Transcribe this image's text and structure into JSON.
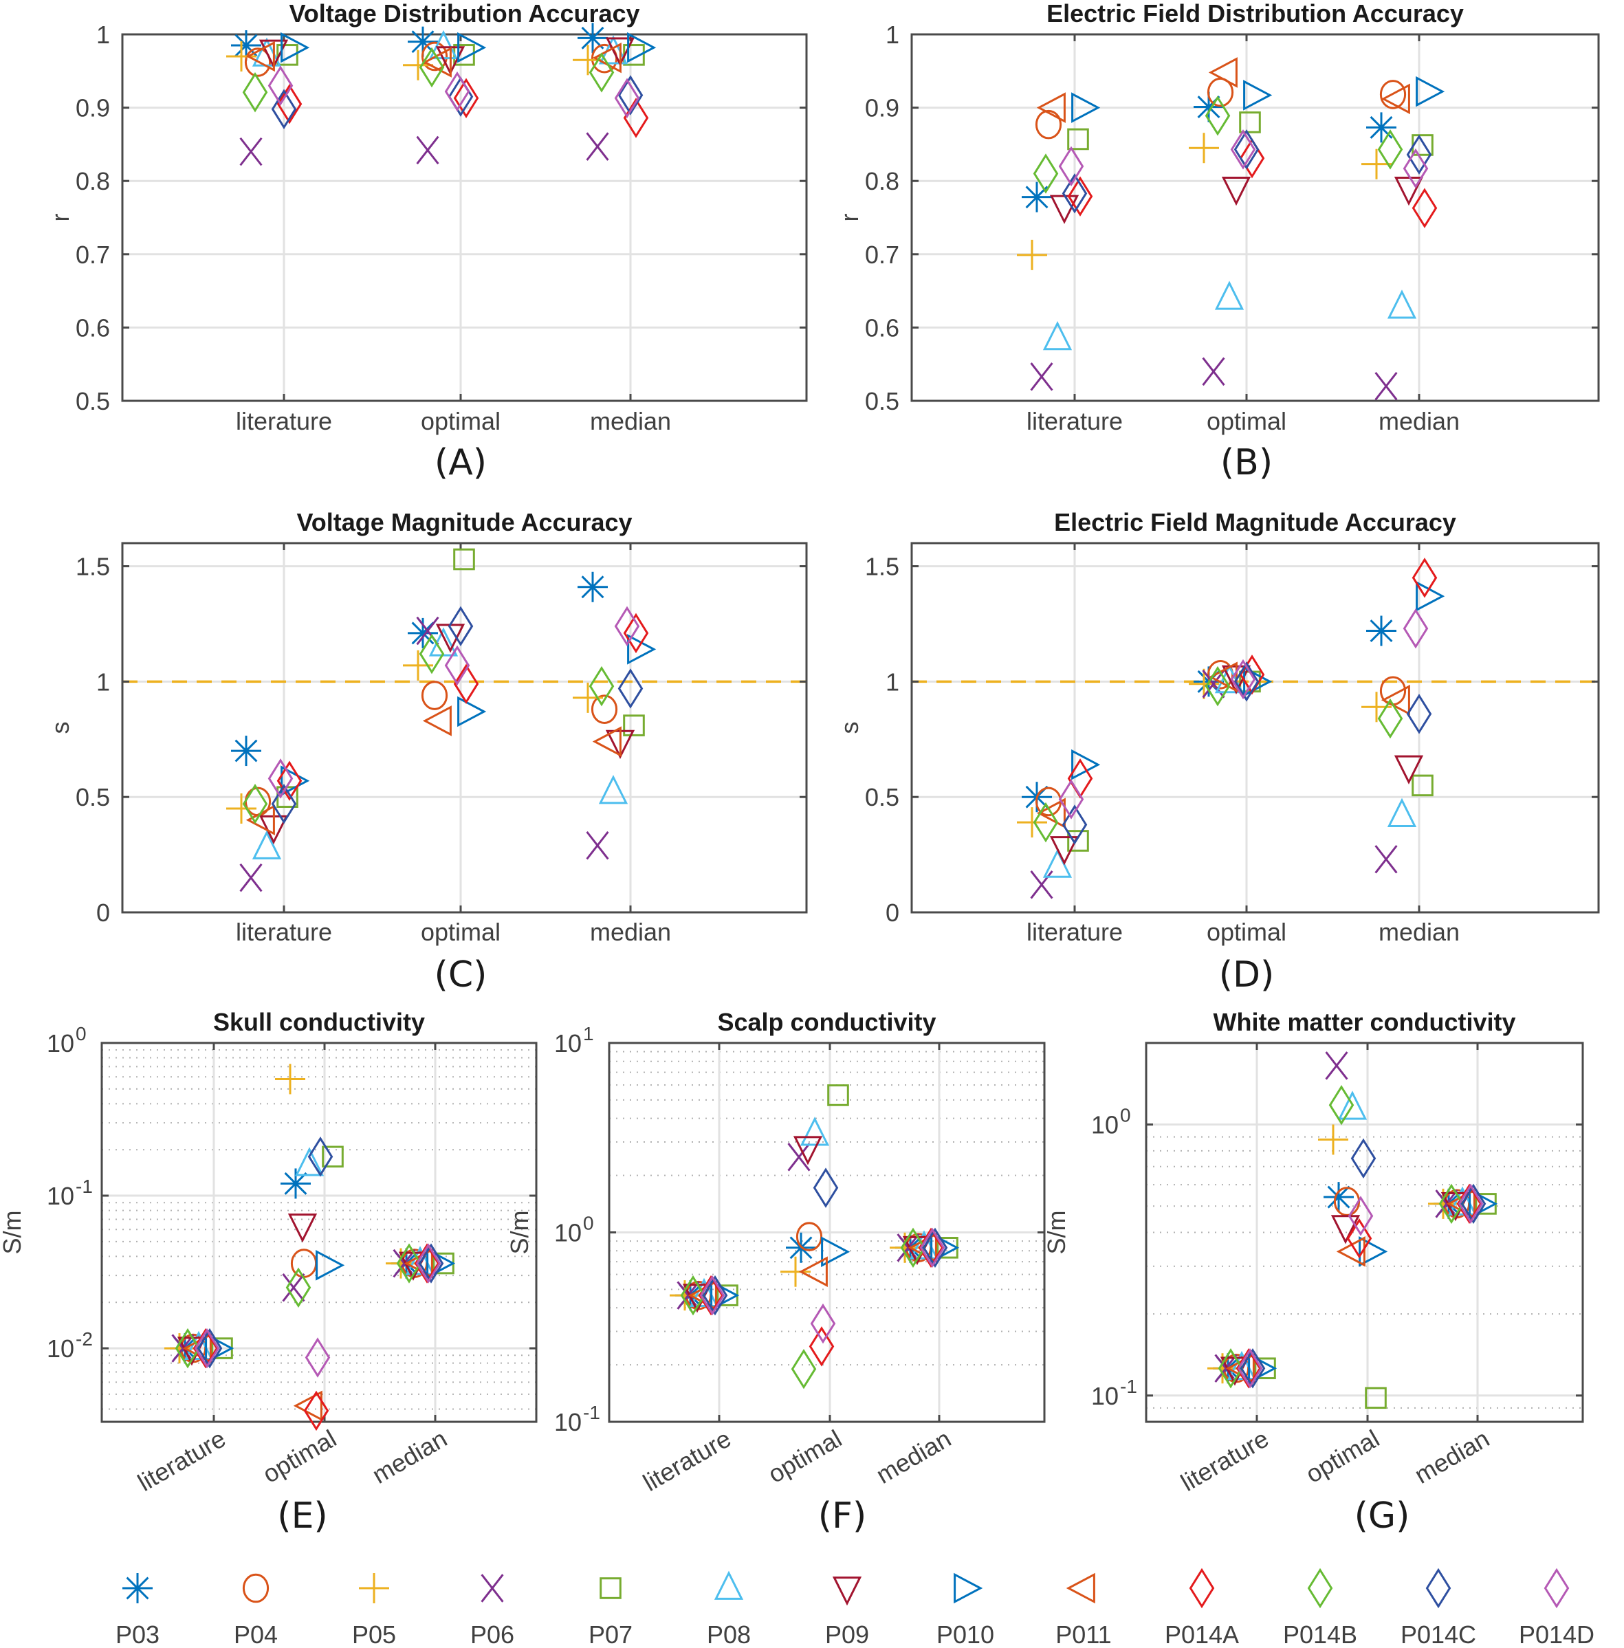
{
  "figure": {
    "legend": [
      "P03",
      "P04",
      "P05",
      "P06",
      "P07",
      "P08",
      "P09",
      "P010",
      "P011",
      "P014A",
      "P014B",
      "P014C",
      "P014D"
    ]
  },
  "participants": [
    {
      "name": "P03",
      "marker": "asterisk",
      "color": "#0072bd"
    },
    {
      "name": "P04",
      "marker": "circle",
      "color": "#d95319"
    },
    {
      "name": "P05",
      "marker": "plus",
      "color": "#edb120"
    },
    {
      "name": "P06",
      "marker": "x",
      "color": "#7e2f8e"
    },
    {
      "name": "P07",
      "marker": "square",
      "color": "#77ac30"
    },
    {
      "name": "P08",
      "marker": "triangle-up",
      "color": "#4dbeee"
    },
    {
      "name": "P09",
      "marker": "triangle-down",
      "color": "#a2142f"
    },
    {
      "name": "P010",
      "marker": "triangle-right",
      "color": "#0072bd"
    },
    {
      "name": "P011",
      "marker": "triangle-left",
      "color": "#d95319"
    },
    {
      "name": "P014A",
      "marker": "diamond",
      "color": "#e41a1c"
    },
    {
      "name": "P014B",
      "marker": "diamond",
      "color": "#66bb33"
    },
    {
      "name": "P014C",
      "marker": "diamond",
      "color": "#2e4fa0"
    },
    {
      "name": "P014D",
      "marker": "diamond",
      "color": "#b559b5"
    }
  ],
  "chart_data": [
    {
      "id": "A",
      "panel_label": "(A)",
      "type": "scatter",
      "title": "Voltage Distribution Accuracy",
      "xlabel": "",
      "ylabel": "r",
      "categories": [
        "literature",
        "optimal",
        "median"
      ],
      "ylim": [
        0.5,
        1
      ],
      "yscale": "linear",
      "yticks": [
        0.5,
        0.6,
        0.7,
        0.8,
        0.9,
        1
      ],
      "ytick_labels": [
        "0.5",
        "0.6",
        "0.7",
        "0.8",
        "0.9",
        "1"
      ],
      "grid": true,
      "series": [
        {
          "name": "P03",
          "values": [
            0.985,
            0.99,
            0.995
          ]
        },
        {
          "name": "P04",
          "values": [
            0.962,
            0.97,
            0.967
          ]
        },
        {
          "name": "P05",
          "values": [
            0.97,
            0.958,
            0.965
          ]
        },
        {
          "name": "P06",
          "values": [
            0.84,
            0.842,
            0.847
          ]
        },
        {
          "name": "P07",
          "values": [
            0.972,
            0.972,
            0.972
          ]
        },
        {
          "name": "P08",
          "values": [
            0.972,
            0.982,
            0.975
          ]
        },
        {
          "name": "P09",
          "values": [
            0.977,
            0.968,
            0.98
          ]
        },
        {
          "name": "P010",
          "values": [
            0.982,
            0.982,
            0.982
          ]
        },
        {
          "name": "P011",
          "values": [
            0.97,
            0.962,
            0.968
          ]
        },
        {
          "name": "P014A",
          "values": [
            0.905,
            0.913,
            0.886
          ]
        },
        {
          "name": "P014B",
          "values": [
            0.921,
            0.955,
            0.948
          ]
        },
        {
          "name": "P014C",
          "values": [
            0.898,
            0.915,
            0.917
          ]
        },
        {
          "name": "P014D",
          "values": [
            0.93,
            0.922,
            0.913
          ]
        }
      ]
    },
    {
      "id": "B",
      "panel_label": "(B)",
      "type": "scatter",
      "title": "Electric Field Distribution Accuracy",
      "xlabel": "",
      "ylabel": "r",
      "categories": [
        "literature",
        "optimal",
        "median"
      ],
      "ylim": [
        0.5,
        1
      ],
      "yscale": "linear",
      "yticks": [
        0.5,
        0.6,
        0.7,
        0.8,
        0.9,
        1
      ],
      "ytick_labels": [
        "0.5",
        "0.6",
        "0.7",
        "0.8",
        "0.9",
        "1"
      ],
      "grid": true,
      "series": [
        {
          "name": "P03",
          "values": [
            0.778,
            0.901,
            0.873
          ]
        },
        {
          "name": "P04",
          "values": [
            0.877,
            0.921,
            0.918
          ]
        },
        {
          "name": "P05",
          "values": [
            0.699,
            0.845,
            0.823
          ]
        },
        {
          "name": "P06",
          "values": [
            0.533,
            0.54,
            0.52
          ]
        },
        {
          "name": "P07",
          "values": [
            0.857,
            0.88,
            0.849
          ]
        },
        {
          "name": "P08",
          "values": [
            0.585,
            0.64,
            0.628
          ]
        },
        {
          "name": "P09",
          "values": [
            0.765,
            0.79,
            0.79
          ]
        },
        {
          "name": "P010",
          "values": [
            0.9,
            0.917,
            0.922
          ]
        },
        {
          "name": "P011",
          "values": [
            0.9,
            0.948,
            0.912
          ]
        },
        {
          "name": "P014A",
          "values": [
            0.779,
            0.831,
            0.763
          ]
        },
        {
          "name": "P014B",
          "values": [
            0.81,
            0.889,
            0.843
          ]
        },
        {
          "name": "P014C",
          "values": [
            0.783,
            0.843,
            0.836
          ]
        },
        {
          "name": "P014D",
          "values": [
            0.82,
            0.843,
            0.817
          ]
        }
      ]
    },
    {
      "id": "C",
      "panel_label": "(C)",
      "type": "scatter",
      "title": "Voltage Magnitude Accuracy",
      "xlabel": "",
      "ylabel": "s",
      "categories": [
        "literature",
        "optimal",
        "median"
      ],
      "ylim": [
        0,
        1.6
      ],
      "yscale": "linear",
      "yticks": [
        0,
        0.5,
        1,
        1.5
      ],
      "ytick_labels": [
        "0",
        "0.5",
        "1",
        "1.5"
      ],
      "grid": true,
      "reference_line": 1,
      "series": [
        {
          "name": "P03",
          "values": [
            0.7,
            1.21,
            1.41
          ]
        },
        {
          "name": "P04",
          "values": [
            0.48,
            0.94,
            0.88
          ]
        },
        {
          "name": "P05",
          "values": [
            0.45,
            1.07,
            0.93
          ]
        },
        {
          "name": "P06",
          "values": [
            0.15,
            1.22,
            0.29
          ]
        },
        {
          "name": "P07",
          "values": [
            0.5,
            1.53,
            0.81
          ]
        },
        {
          "name": "P08",
          "values": [
            0.28,
            1.16,
            0.52
          ]
        },
        {
          "name": "P09",
          "values": [
            0.37,
            1.2,
            0.74
          ]
        },
        {
          "name": "P010",
          "values": [
            0.57,
            0.87,
            1.14
          ]
        },
        {
          "name": "P011",
          "values": [
            0.4,
            0.83,
            0.74
          ]
        },
        {
          "name": "P014A",
          "values": [
            0.57,
            0.99,
            1.21
          ]
        },
        {
          "name": "P014B",
          "values": [
            0.47,
            1.12,
            0.98
          ]
        },
        {
          "name": "P014C",
          "values": [
            0.47,
            1.24,
            0.97
          ]
        },
        {
          "name": "P014D",
          "values": [
            0.58,
            1.07,
            1.24
          ]
        }
      ]
    },
    {
      "id": "D",
      "panel_label": "(D)",
      "type": "scatter",
      "title": "Electric Field Magnitude Accuracy",
      "xlabel": "",
      "ylabel": "s",
      "categories": [
        "literature",
        "optimal",
        "median"
      ],
      "ylim": [
        0,
        1.6
      ],
      "yscale": "linear",
      "yticks": [
        0,
        0.5,
        1,
        1.5
      ],
      "ytick_labels": [
        "0",
        "0.5",
        "1",
        "1.5"
      ],
      "grid": true,
      "reference_line": 1,
      "series": [
        {
          "name": "P03",
          "values": [
            0.5,
            1.0,
            1.22
          ]
        },
        {
          "name": "P04",
          "values": [
            0.48,
            1.03,
            0.96
          ]
        },
        {
          "name": "P05",
          "values": [
            0.39,
            0.99,
            0.89
          ]
        },
        {
          "name": "P06",
          "values": [
            0.12,
            0.99,
            0.23
          ]
        },
        {
          "name": "P07",
          "values": [
            0.31,
            1.0,
            0.55
          ]
        },
        {
          "name": "P08",
          "values": [
            0.2,
            1.0,
            0.42
          ]
        },
        {
          "name": "P09",
          "values": [
            0.28,
            1.02,
            0.63
          ]
        },
        {
          "name": "P010",
          "values": [
            0.64,
            1.0,
            1.37
          ]
        },
        {
          "name": "P011",
          "values": [
            0.43,
            1.02,
            0.92
          ]
        },
        {
          "name": "P014A",
          "values": [
            0.58,
            1.03,
            1.45
          ]
        },
        {
          "name": "P014B",
          "values": [
            0.39,
            0.98,
            0.84
          ]
        },
        {
          "name": "P014C",
          "values": [
            0.38,
            1.0,
            0.86
          ]
        },
        {
          "name": "P014D",
          "values": [
            0.49,
            1.01,
            1.23
          ]
        }
      ]
    },
    {
      "id": "E",
      "panel_label": "(E)",
      "type": "scatter",
      "title": "Skull conductivity",
      "xlabel": "",
      "ylabel": "S/m",
      "categories": [
        "literature",
        "optimal",
        "median"
      ],
      "ylim": [
        0.0033,
        1
      ],
      "yscale": "log",
      "yticks": [
        0.01,
        0.1,
        1
      ],
      "ytick_labels": [
        "10",
        "10",
        "10"
      ],
      "ytick_exponents": [
        "-2",
        "-1",
        "0"
      ],
      "grid": true,
      "minor_grid": true,
      "series": [
        {
          "name": "P03",
          "values": [
            0.01,
            0.12,
            0.036
          ]
        },
        {
          "name": "P04",
          "values": [
            0.01,
            0.036,
            0.036
          ]
        },
        {
          "name": "P05",
          "values": [
            0.01,
            0.58,
            0.036
          ]
        },
        {
          "name": "P06",
          "values": [
            0.01,
            0.025,
            0.036
          ]
        },
        {
          "name": "P07",
          "values": [
            0.01,
            0.18,
            0.036
          ]
        },
        {
          "name": "P08",
          "values": [
            0.01,
            0.16,
            0.036
          ]
        },
        {
          "name": "P09",
          "values": [
            0.01,
            0.064,
            0.036
          ]
        },
        {
          "name": "P010",
          "values": [
            0.01,
            0.035,
            0.036
          ]
        },
        {
          "name": "P011",
          "values": [
            0.01,
            0.0042,
            0.036
          ]
        },
        {
          "name": "P014A",
          "values": [
            0.01,
            0.0039,
            0.036
          ]
        },
        {
          "name": "P014B",
          "values": [
            0.01,
            0.025,
            0.036
          ]
        },
        {
          "name": "P014C",
          "values": [
            0.01,
            0.18,
            0.036
          ]
        },
        {
          "name": "P014D",
          "values": [
            0.01,
            0.0087,
            0.036
          ]
        }
      ]
    },
    {
      "id": "F",
      "panel_label": "(F)",
      "type": "scatter",
      "title": "Scalp conductivity",
      "xlabel": "",
      "ylabel": "S/m",
      "categories": [
        "literature",
        "optimal",
        "median"
      ],
      "ylim": [
        0.1,
        10
      ],
      "yscale": "log",
      "yticks": [
        0.1,
        1,
        10
      ],
      "ytick_labels": [
        "10",
        "10",
        "10"
      ],
      "ytick_exponents": [
        "-1",
        "0",
        "1"
      ],
      "grid": true,
      "minor_grid": true,
      "series": [
        {
          "name": "P03",
          "values": [
            0.465,
            0.83,
            0.83
          ]
        },
        {
          "name": "P04",
          "values": [
            0.465,
            0.95,
            0.83
          ]
        },
        {
          "name": "P05",
          "values": [
            0.465,
            0.62,
            0.83
          ]
        },
        {
          "name": "P06",
          "values": [
            0.465,
            2.5,
            0.83
          ]
        },
        {
          "name": "P07",
          "values": [
            0.465,
            5.3,
            0.83
          ]
        },
        {
          "name": "P08",
          "values": [
            0.465,
            3.3,
            0.83
          ]
        },
        {
          "name": "P09",
          "values": [
            0.465,
            2.8,
            0.83
          ]
        },
        {
          "name": "P010",
          "values": [
            0.465,
            0.79,
            0.83
          ]
        },
        {
          "name": "P011",
          "values": [
            0.465,
            0.62,
            0.83
          ]
        },
        {
          "name": "P014A",
          "values": [
            0.465,
            0.25,
            0.83
          ]
        },
        {
          "name": "P014B",
          "values": [
            0.465,
            0.19,
            0.83
          ]
        },
        {
          "name": "P014C",
          "values": [
            0.465,
            1.72,
            0.83
          ]
        },
        {
          "name": "P014D",
          "values": [
            0.465,
            0.33,
            0.83
          ]
        }
      ]
    },
    {
      "id": "G",
      "panel_label": "(G)",
      "type": "scatter",
      "title": "White matter conductivity",
      "xlabel": "",
      "ylabel": "S/m",
      "categories": [
        "literature",
        "optimal",
        "median"
      ],
      "ylim": [
        0.08,
        2.0
      ],
      "yscale": "log",
      "yticks": [
        0.1,
        1
      ],
      "ytick_labels": [
        "10",
        "10"
      ],
      "ytick_exponents": [
        "-1",
        "0"
      ],
      "grid": true,
      "minor_grid": true,
      "series": [
        {
          "name": "P03",
          "values": [
            0.126,
            0.54,
            0.51
          ]
        },
        {
          "name": "P04",
          "values": [
            0.126,
            0.52,
            0.51
          ]
        },
        {
          "name": "P05",
          "values": [
            0.126,
            0.88,
            0.51
          ]
        },
        {
          "name": "P06",
          "values": [
            0.126,
            1.65,
            0.51
          ]
        },
        {
          "name": "P07",
          "values": [
            0.126,
            0.098,
            0.51
          ]
        },
        {
          "name": "P08",
          "values": [
            0.126,
            1.15,
            0.51
          ]
        },
        {
          "name": "P09",
          "values": [
            0.126,
            0.42,
            0.51
          ]
        },
        {
          "name": "P010",
          "values": [
            0.126,
            0.34,
            0.51
          ]
        },
        {
          "name": "P011",
          "values": [
            0.126,
            0.34,
            0.51
          ]
        },
        {
          "name": "P014A",
          "values": [
            0.126,
            0.38,
            0.51
          ]
        },
        {
          "name": "P014B",
          "values": [
            0.126,
            1.18,
            0.51
          ]
        },
        {
          "name": "P014C",
          "values": [
            0.126,
            0.75,
            0.51
          ]
        },
        {
          "name": "P014D",
          "values": [
            0.126,
            0.46,
            0.51
          ]
        }
      ]
    }
  ]
}
